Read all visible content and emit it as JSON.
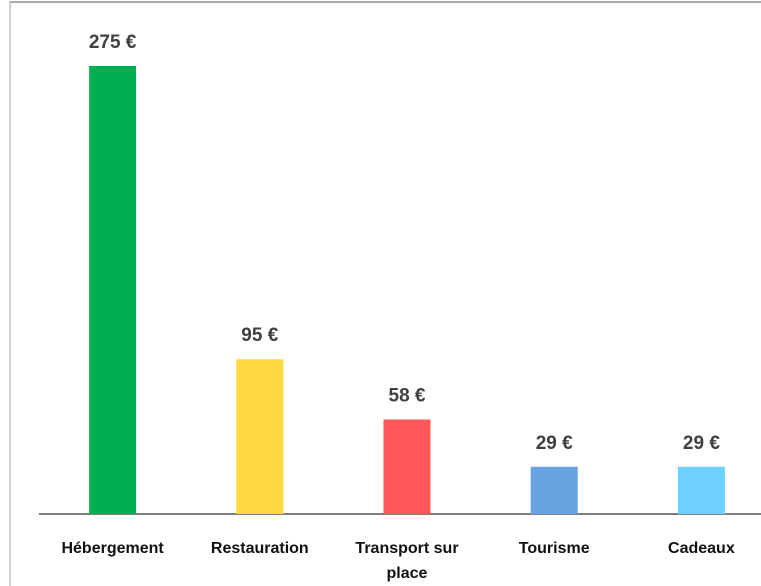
{
  "chart_data": {
    "type": "bar",
    "categories": [
      "Hébergement",
      "Restauration",
      "Transport sur place",
      "Tourisme",
      "Cadeaux"
    ],
    "values": [
      275,
      95,
      58,
      29,
      29
    ],
    "value_labels": [
      "275 €",
      "95 €",
      "58 €",
      "29 €",
      "29 €"
    ],
    "colors": [
      "#00b050",
      "#ffd740",
      "#ff5757",
      "#66a3e0",
      "#6dd0ff"
    ]
  }
}
